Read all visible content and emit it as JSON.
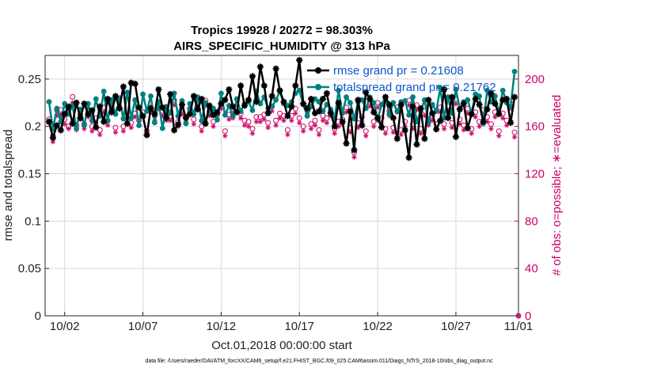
{
  "colors": {
    "rmse": "#000000",
    "spread": "#008080",
    "obs": "#cc0066",
    "legend_text": "#0b57d0",
    "grid": "#d9d9d9"
  },
  "chart_data": {
    "type": "line",
    "title_line1": "Tropics 19928 / 20272 = 98.303%",
    "title_line2": "AIRS_SPECIFIC_HUMIDITY @ 313 hPa",
    "xlabel": "Oct.01,2018 00:00:00 start",
    "ylabel": "rmse and totalspread",
    "y2label": "# of obs: o=possible; ∗=evaluated",
    "xlim": [
      0.75,
      31.0
    ],
    "ylim": [
      0,
      0.275
    ],
    "y2lim": [
      0,
      220
    ],
    "xtick_values": [
      2,
      7,
      12,
      17,
      22,
      27,
      32
    ],
    "xtick_labels": [
      "10/02",
      "10/07",
      "10/12",
      "10/17",
      "10/22",
      "10/27",
      "11/01"
    ],
    "ytick_values": [
      0,
      0.05,
      0.1,
      0.15,
      0.2,
      0.25
    ],
    "ytick_labels": [
      "0",
      "0.05",
      "0.1",
      "0.15",
      "0.2",
      "0.25"
    ],
    "y2tick_values": [
      0,
      40,
      80,
      120,
      160,
      200
    ],
    "y2tick_labels": [
      "0",
      "40",
      "80",
      "120",
      "160",
      "200"
    ],
    "grid": true,
    "legend_position": "top-right",
    "footnote": "data file: /Users/raeder/DAI/ATM_forcXX/CAM6_setup/f.e21.FHIST_BGC.f09_025.CAM6assim.011/Diags_NTrS_2018-10/obs_diag_output.nc",
    "series": [
      {
        "name": "rmse",
        "legend_label": "rmse grand pr = 0.21608",
        "x": [
          1.0,
          1.25,
          1.5,
          1.75,
          2.0,
          2.25,
          2.5,
          2.75,
          3.0,
          3.25,
          3.5,
          3.75,
          4.0,
          4.25,
          4.5,
          4.75,
          5.0,
          5.25,
          5.5,
          5.75,
          6.0,
          6.25,
          6.5,
          6.75,
          7.0,
          7.25,
          7.5,
          7.75,
          8.0,
          8.25,
          8.5,
          8.75,
          9.0,
          9.25,
          9.5,
          9.75,
          10.0,
          10.25,
          10.5,
          10.75,
          11.0,
          11.25,
          11.5,
          11.75,
          12.0,
          12.25,
          12.5,
          12.75,
          13.0,
          13.25,
          13.5,
          13.75,
          14.0,
          14.25,
          14.5,
          14.75,
          15.0,
          15.25,
          15.5,
          15.75,
          16.0,
          16.25,
          16.5,
          16.75,
          17.0,
          17.25,
          17.5,
          17.75,
          18.0,
          18.25,
          18.5,
          18.75,
          19.0,
          19.25,
          19.5,
          19.75,
          20.0,
          20.25,
          20.5,
          20.75,
          21.0,
          21.25,
          21.5,
          21.75,
          22.0,
          22.25,
          22.5,
          22.75,
          23.0,
          23.25,
          23.5,
          23.75,
          24.0,
          24.25,
          24.5,
          24.75,
          25.0,
          25.25,
          25.5,
          25.75,
          26.0,
          26.25,
          26.5,
          26.75,
          27.0,
          27.25,
          27.5,
          27.75,
          28.0,
          28.25,
          28.5,
          28.75,
          29.0,
          29.25,
          29.5,
          29.75,
          30.0,
          30.25,
          30.5,
          30.75
        ],
        "values": [
          0.205,
          0.188,
          0.201,
          0.196,
          0.213,
          0.221,
          0.203,
          0.225,
          0.209,
          0.224,
          0.213,
          0.217,
          0.199,
          0.221,
          0.205,
          0.229,
          0.215,
          0.232,
          0.219,
          0.242,
          0.203,
          0.246,
          0.245,
          0.22,
          0.211,
          0.191,
          0.219,
          0.213,
          0.239,
          0.22,
          0.209,
          0.234,
          0.196,
          0.202,
          0.223,
          0.209,
          0.213,
          0.232,
          0.218,
          0.229,
          0.203,
          0.222,
          0.212,
          0.215,
          0.224,
          0.228,
          0.239,
          0.221,
          0.215,
          0.243,
          0.222,
          0.228,
          0.253,
          0.226,
          0.263,
          0.243,
          0.214,
          0.232,
          0.261,
          0.238,
          0.226,
          0.211,
          0.221,
          0.243,
          0.27,
          0.224,
          0.219,
          0.229,
          0.214,
          0.216,
          0.229,
          0.235,
          0.214,
          0.2,
          0.225,
          0.205,
          0.182,
          0.216,
          0.175,
          0.228,
          0.201,
          0.236,
          0.229,
          0.215,
          0.209,
          0.199,
          0.231,
          0.223,
          0.209,
          0.187,
          0.223,
          0.196,
          0.167,
          0.221,
          0.181,
          0.219,
          0.187,
          0.228,
          0.214,
          0.197,
          0.206,
          0.239,
          0.209,
          0.231,
          0.189,
          0.218,
          0.224,
          0.198,
          0.213,
          0.229,
          0.223,
          0.205,
          0.218,
          0.235,
          0.224,
          0.213,
          0.228,
          0.229,
          0.204,
          0.231
        ]
      },
      {
        "name": "totalspread",
        "legend_label": "totalspread grand pr = 0.21762",
        "x": [
          1.0,
          1.25,
          1.5,
          1.75,
          2.0,
          2.25,
          2.5,
          2.75,
          3.0,
          3.25,
          3.5,
          3.75,
          4.0,
          4.25,
          4.5,
          4.75,
          5.0,
          5.25,
          5.5,
          5.75,
          6.0,
          6.25,
          6.5,
          6.75,
          7.0,
          7.25,
          7.5,
          7.75,
          8.0,
          8.25,
          8.5,
          8.75,
          9.0,
          9.25,
          9.5,
          9.75,
          10.0,
          10.25,
          10.5,
          10.75,
          11.0,
          11.25,
          11.5,
          11.75,
          12.0,
          12.25,
          12.5,
          12.75,
          13.0,
          13.25,
          13.5,
          13.75,
          14.0,
          14.25,
          14.5,
          14.75,
          15.0,
          15.25,
          15.5,
          15.75,
          16.0,
          16.25,
          16.5,
          16.75,
          17.0,
          17.25,
          17.5,
          17.75,
          18.0,
          18.25,
          18.5,
          18.75,
          19.0,
          19.25,
          19.5,
          19.75,
          20.0,
          20.25,
          20.5,
          20.75,
          21.0,
          21.25,
          21.5,
          21.75,
          22.0,
          22.25,
          22.5,
          22.75,
          23.0,
          23.25,
          23.5,
          23.75,
          24.0,
          24.25,
          24.5,
          24.75,
          25.0,
          25.25,
          25.5,
          25.75,
          26.0,
          26.25,
          26.5,
          26.75,
          27.0,
          27.25,
          27.5,
          27.75,
          28.0,
          28.25,
          28.5,
          28.75,
          29.0,
          29.25,
          29.5,
          29.75,
          30.0,
          30.25,
          30.5,
          30.75
        ],
        "values": [
          0.226,
          0.197,
          0.219,
          0.205,
          0.224,
          0.213,
          0.222,
          0.198,
          0.218,
          0.201,
          0.224,
          0.206,
          0.229,
          0.211,
          0.237,
          0.206,
          0.228,
          0.213,
          0.229,
          0.208,
          0.236,
          0.209,
          0.228,
          0.201,
          0.234,
          0.216,
          0.232,
          0.204,
          0.226,
          0.198,
          0.221,
          0.214,
          0.235,
          0.211,
          0.227,
          0.203,
          0.224,
          0.213,
          0.231,
          0.206,
          0.225,
          0.215,
          0.219,
          0.207,
          0.235,
          0.212,
          0.222,
          0.211,
          0.229,
          0.216,
          0.224,
          0.226,
          0.217,
          0.237,
          0.224,
          0.231,
          0.219,
          0.221,
          0.228,
          0.237,
          0.224,
          0.222,
          0.226,
          0.235,
          0.238,
          0.223,
          0.211,
          0.221,
          0.229,
          0.226,
          0.216,
          0.223,
          0.218,
          0.208,
          0.238,
          0.214,
          0.231,
          0.225,
          0.208,
          0.226,
          0.228,
          0.219,
          0.231,
          0.225,
          0.207,
          0.223,
          0.231,
          0.213,
          0.225,
          0.216,
          0.226,
          0.227,
          0.212,
          0.231,
          0.205,
          0.216,
          0.228,
          0.204,
          0.223,
          0.216,
          0.241,
          0.209,
          0.231,
          0.214,
          0.239,
          0.219,
          0.226,
          0.228,
          0.214,
          0.234,
          0.232,
          0.203,
          0.238,
          0.226,
          0.232,
          0.214,
          0.238,
          0.225,
          0.221,
          0.258
        ]
      },
      {
        "name": "obs possible",
        "marker": "o",
        "axis": "right",
        "x": [
          1.0,
          1.25,
          1.5,
          1.75,
          2.0,
          2.25,
          2.5,
          2.75,
          3.0,
          3.25,
          3.5,
          3.75,
          4.0,
          4.25,
          4.5,
          4.75,
          5.0,
          5.25,
          5.5,
          5.75,
          6.0,
          6.25,
          6.5,
          6.75,
          7.0,
          7.25,
          7.5,
          7.75,
          8.0,
          8.25,
          8.5,
          8.75,
          9.0,
          9.25,
          9.5,
          9.75,
          10.0,
          10.25,
          10.5,
          10.75,
          11.0,
          11.25,
          11.5,
          11.75,
          12.0,
          12.25,
          12.5,
          12.75,
          13.0,
          13.25,
          13.5,
          13.75,
          14.0,
          14.25,
          14.5,
          14.75,
          15.0,
          15.25,
          15.5,
          15.75,
          16.0,
          16.25,
          16.5,
          16.75,
          17.0,
          17.25,
          17.5,
          17.75,
          18.0,
          18.25,
          18.5,
          18.75,
          19.0,
          19.25,
          19.5,
          19.75,
          20.0,
          20.25,
          20.5,
          20.75,
          21.0,
          21.25,
          21.5,
          21.75,
          22.0,
          22.25,
          22.5,
          22.75,
          23.0,
          23.25,
          23.5,
          23.75,
          24.0,
          24.25,
          24.5,
          24.75,
          25.0,
          25.25,
          25.5,
          25.75,
          26.0,
          26.25,
          26.5,
          26.75,
          27.0,
          27.25,
          27.5,
          27.75,
          28.0,
          28.25,
          28.5,
          28.75,
          29.0,
          29.25,
          29.5,
          29.75,
          30.0,
          30.25,
          30.5,
          30.75,
          31.0
        ],
        "values": [
          166,
          152,
          174,
          174,
          166,
          160,
          185,
          161,
          170,
          162,
          172,
          160,
          167,
          157,
          176,
          165,
          181,
          159,
          184,
          160,
          165,
          163,
          171,
          165,
          172,
          156,
          176,
          169,
          179,
          173,
          169,
          169,
          182,
          164,
          174,
          168,
          175,
          166,
          181,
          160,
          182,
          173,
          164,
          170,
          179,
          156,
          170,
          171,
          176,
          171,
          165,
          164,
          158,
          168,
          168,
          170,
          163,
          177,
          165,
          171,
          169,
          157,
          169,
          175,
          167,
          160,
          174,
          162,
          165,
          157,
          169,
          167,
          173,
          158,
          164,
          166,
          176,
          159,
          138,
          163,
          168,
          156,
          181,
          164,
          180,
          167,
          158,
          173,
          159,
          176,
          157,
          164,
          182,
          162,
          178,
          158,
          173,
          165,
          169,
          162,
          176,
          162,
          177,
          163,
          183,
          166,
          161,
          175,
          158,
          172,
          164,
          174,
          168,
          162,
          172,
          156,
          171,
          165,
          179,
          155,
          0
        ]
      },
      {
        "name": "obs evaluated",
        "marker": "*",
        "axis": "right",
        "x": [
          1.0,
          1.25,
          1.5,
          1.75,
          2.0,
          2.25,
          2.5,
          2.75,
          3.0,
          3.25,
          3.5,
          3.75,
          4.0,
          4.25,
          4.5,
          4.75,
          5.0,
          5.25,
          5.5,
          5.75,
          6.0,
          6.25,
          6.5,
          6.75,
          7.0,
          7.25,
          7.5,
          7.75,
          8.0,
          8.25,
          8.5,
          8.75,
          9.0,
          9.25,
          9.5,
          9.75,
          10.0,
          10.25,
          10.5,
          10.75,
          11.0,
          11.25,
          11.5,
          11.75,
          12.0,
          12.25,
          12.5,
          12.75,
          13.0,
          13.25,
          13.5,
          13.75,
          14.0,
          14.25,
          14.5,
          14.75,
          15.0,
          15.25,
          15.5,
          15.75,
          16.0,
          16.25,
          16.5,
          16.75,
          17.0,
          17.25,
          17.5,
          17.75,
          18.0,
          18.25,
          18.5,
          18.75,
          19.0,
          19.25,
          19.5,
          19.75,
          20.0,
          20.25,
          20.5,
          20.75,
          21.0,
          21.25,
          21.5,
          21.75,
          22.0,
          22.25,
          22.5,
          22.75,
          23.0,
          23.25,
          23.5,
          23.75,
          24.0,
          24.25,
          24.5,
          24.75,
          25.0,
          25.25,
          25.5,
          25.75,
          26.0,
          26.25,
          26.5,
          26.75,
          27.0,
          27.25,
          27.5,
          27.75,
          28.0,
          28.25,
          28.5,
          28.75,
          29.0,
          29.25,
          29.5,
          29.75,
          30.0,
          30.25,
          30.5,
          30.75,
          31.0
        ],
        "values": [
          163,
          147,
          169,
          170,
          162,
          158,
          180,
          157,
          166,
          158,
          168,
          156,
          163,
          153,
          172,
          161,
          177,
          155,
          180,
          156,
          162,
          159,
          168,
          161,
          168,
          152,
          172,
          165,
          175,
          169,
          165,
          165,
          178,
          160,
          170,
          164,
          171,
          162,
          177,
          156,
          178,
          169,
          160,
          166,
          175,
          152,
          166,
          167,
          172,
          167,
          161,
          160,
          154,
          164,
          164,
          166,
          159,
          173,
          161,
          167,
          165,
          153,
          165,
          171,
          163,
          156,
          170,
          158,
          161,
          153,
          165,
          163,
          169,
          154,
          160,
          162,
          172,
          155,
          134,
          159,
          164,
          152,
          177,
          160,
          176,
          163,
          154,
          169,
          155,
          172,
          153,
          160,
          178,
          158,
          174,
          154,
          169,
          161,
          165,
          158,
          172,
          158,
          173,
          159,
          179,
          162,
          157,
          171,
          154,
          168,
          160,
          170,
          164,
          158,
          168,
          152,
          167,
          161,
          175,
          151,
          0
        ]
      }
    ]
  }
}
